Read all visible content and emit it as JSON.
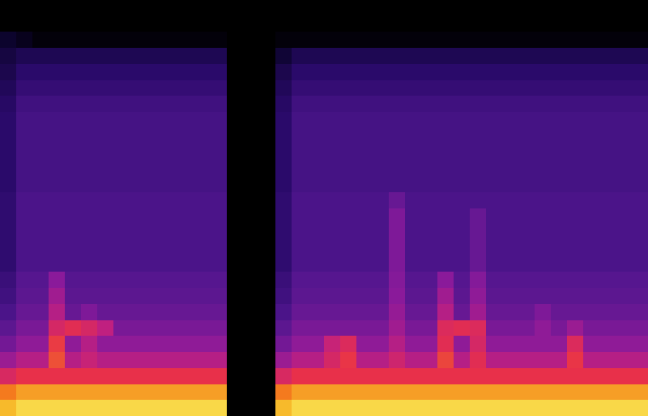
{
  "chart_data": {
    "type": "heatmap",
    "tick_labels": false,
    "xlim": [
      -0.5,
      39.5
    ],
    "ylim": [
      -0.5,
      25.5
    ],
    "zlim": [
      0,
      10
    ],
    "z": [
      [
        8.7,
        9.2,
        9.2,
        9.2,
        9.2,
        9.2,
        9.2,
        9.2,
        9.2,
        9.2,
        9.2,
        9.2,
        9.2,
        9.2,
        null,
        null,
        null,
        8.7,
        9.2,
        9.2,
        9.2,
        9.2,
        9.2,
        9.2,
        9.2,
        9.2,
        9.2,
        9.2,
        9.2,
        9.2,
        9.2,
        9.2,
        9.2,
        9.2,
        9.2,
        9.2,
        9.2,
        9.2,
        9.2,
        9.2
      ],
      [
        7.8,
        8.3,
        8.3,
        8.3,
        8.3,
        8.3,
        8.3,
        8.3,
        8.3,
        8.3,
        8.3,
        8.3,
        8.3,
        8.3,
        null,
        null,
        null,
        7.8,
        8.3,
        8.3,
        8.3,
        8.3,
        8.3,
        8.3,
        8.3,
        8.3,
        8.3,
        8.3,
        8.3,
        8.3,
        8.3,
        8.3,
        8.3,
        8.3,
        8.3,
        8.3,
        8.3,
        8.3,
        8.3,
        8.3
      ],
      [
        5.9,
        6.4,
        6.4,
        6.4,
        6.4,
        6.4,
        6.4,
        6.4,
        6.4,
        6.4,
        6.4,
        6.4,
        6.4,
        6.4,
        null,
        null,
        null,
        5.9,
        6.4,
        6.4,
        6.4,
        6.4,
        6.4,
        6.4,
        6.4,
        6.4,
        6.4,
        6.4,
        6.4,
        6.4,
        6.4,
        6.4,
        6.4,
        6.4,
        6.4,
        6.4,
        6.4,
        6.4,
        6.4,
        6.4
      ],
      [
        4.5,
        5,
        5,
        7,
        5,
        5.4,
        5,
        5,
        5,
        5,
        5,
        5,
        5,
        5,
        null,
        null,
        null,
        4.5,
        5,
        5,
        5.8,
        6.5,
        5,
        5,
        5.6,
        5,
        5,
        6.8,
        5,
        6.2,
        5,
        5,
        5,
        5,
        5,
        6.5,
        5,
        5,
        5,
        5
      ],
      [
        3.8,
        4.3,
        4.3,
        6.6,
        4.3,
        5,
        4.3,
        4.3,
        4.3,
        4.3,
        4.3,
        4.3,
        4.3,
        4.3,
        null,
        null,
        null,
        3.8,
        4.3,
        4.3,
        5.4,
        6,
        4.3,
        4.3,
        5,
        4.3,
        4.3,
        6.2,
        4.3,
        5.8,
        4.3,
        4.3,
        4.3,
        4.3,
        4.3,
        6,
        4.3,
        4.3,
        4.3,
        4.3
      ],
      [
        3.4,
        3.9,
        3.9,
        5.8,
        6.2,
        5.8,
        5.2,
        3.9,
        3.9,
        3.9,
        3.9,
        3.9,
        3.9,
        3.9,
        null,
        null,
        null,
        3.4,
        3.9,
        3.9,
        3.9,
        3.9,
        3.9,
        3.9,
        4.6,
        3.9,
        3.9,
        6,
        6.2,
        6,
        3.9,
        3.9,
        3.9,
        4.3,
        3.9,
        4.5,
        3.9,
        3.9,
        3.9,
        3.9
      ],
      [
        3.1,
        3.6,
        3.6,
        5,
        3.6,
        4,
        3.6,
        3.6,
        3.6,
        3.6,
        3.6,
        3.6,
        3.6,
        3.6,
        null,
        null,
        null,
        3.1,
        3.6,
        3.6,
        3.6,
        3.6,
        3.6,
        3.6,
        4.4,
        3.6,
        3.6,
        5,
        3.6,
        4.6,
        3.6,
        3.6,
        3.6,
        4,
        3.6,
        3.6,
        3.6,
        3.6,
        3.6,
        3.6
      ],
      [
        2.9,
        3.4,
        3.4,
        4.6,
        3.4,
        3.4,
        3.4,
        3.4,
        3.4,
        3.4,
        3.4,
        3.4,
        3.4,
        3.4,
        null,
        null,
        null,
        2.9,
        3.4,
        3.4,
        3.4,
        3.4,
        3.4,
        3.4,
        4.2,
        3.4,
        3.4,
        4.6,
        3.4,
        4.3,
        3.4,
        3.4,
        3.4,
        3.4,
        3.4,
        3.4,
        3.4,
        3.4,
        3.4,
        3.4
      ],
      [
        2.8,
        3.3,
        3.3,
        4.2,
        3.3,
        3.3,
        3.3,
        3.3,
        3.3,
        3.3,
        3.3,
        3.3,
        3.3,
        3.3,
        null,
        null,
        null,
        2.8,
        3.3,
        3.3,
        3.3,
        3.3,
        3.3,
        3.3,
        4.1,
        3.3,
        3.3,
        4.2,
        3.3,
        4.1,
        3.3,
        3.3,
        3.3,
        3.3,
        3.3,
        3.3,
        3.3,
        3.3,
        3.3,
        3.3
      ],
      [
        2.6,
        3.1,
        3.1,
        3.1,
        3.1,
        3.1,
        3.1,
        3.1,
        3.1,
        3.1,
        3.1,
        3.1,
        3.1,
        3.1,
        null,
        null,
        null,
        2.6,
        3.1,
        3.1,
        3.1,
        3.1,
        3.1,
        3.1,
        4,
        3.1,
        3.1,
        3.1,
        3.1,
        3.6,
        3.1,
        3.1,
        3.1,
        3.1,
        3.1,
        3.1,
        3.1,
        3.1,
        3.1,
        3.1
      ],
      [
        2.6,
        3.1,
        3.1,
        3.1,
        3.1,
        3.1,
        3.1,
        3.1,
        3.1,
        3.1,
        3.1,
        3.1,
        3.1,
        3.1,
        null,
        null,
        null,
        2.6,
        3.1,
        3.1,
        3.1,
        3.1,
        3.1,
        3.1,
        4,
        3.1,
        3.1,
        3.1,
        3.1,
        3.6,
        3.1,
        3.1,
        3.1,
        3.1,
        3.1,
        3.1,
        3.1,
        3.1,
        3.1,
        3.1
      ],
      [
        2.6,
        3.1,
        3.1,
        3.1,
        3.1,
        3.1,
        3.1,
        3.1,
        3.1,
        3.1,
        3.1,
        3.1,
        3.1,
        3.1,
        null,
        null,
        null,
        2.6,
        3.1,
        3.1,
        3.1,
        3.1,
        3.1,
        3.1,
        4,
        3.1,
        3.1,
        3.1,
        3.1,
        3.6,
        3.1,
        3.1,
        3.1,
        3.1,
        3.1,
        3.1,
        3.1,
        3.1,
        3.1,
        3.1
      ],
      [
        2.6,
        3.1,
        3.1,
        3.1,
        3.1,
        3.1,
        3.1,
        3.1,
        3.1,
        3.1,
        3.1,
        3.1,
        3.1,
        3.1,
        null,
        null,
        null,
        2.6,
        3.1,
        3.1,
        3.1,
        3.1,
        3.1,
        3.1,
        4,
        3.1,
        3.1,
        3.1,
        3.1,
        3.6,
        3.1,
        3.1,
        3.1,
        3.1,
        3.1,
        3.1,
        3.1,
        3.1,
        3.1,
        3.1
      ],
      [
        2.6,
        3.1,
        3.1,
        3.1,
        3.1,
        3.1,
        3.1,
        3.1,
        3.1,
        3.1,
        3.1,
        3.1,
        3.1,
        3.1,
        null,
        null,
        null,
        2.6,
        3.1,
        3.1,
        3.1,
        3.1,
        3.1,
        3.1,
        3.6,
        3.1,
        3.1,
        3.1,
        3.1,
        3.1,
        3.1,
        3.1,
        3.1,
        3.1,
        3.1,
        3.1,
        3.1,
        3.1,
        3.1,
        3.1
      ],
      [
        2.5,
        3,
        3,
        3,
        3,
        3,
        3,
        3,
        3,
        3,
        3,
        3,
        3,
        3,
        null,
        null,
        null,
        2.5,
        3,
        3,
        3,
        3,
        3,
        3,
        3,
        3,
        3,
        3,
        3,
        3,
        3,
        3,
        3,
        3,
        3,
        3,
        3,
        3,
        3,
        3
      ],
      [
        2.5,
        3,
        3,
        3,
        3,
        3,
        3,
        3,
        3,
        3,
        3,
        3,
        3,
        3,
        null,
        null,
        null,
        2.5,
        3,
        3,
        3,
        3,
        3,
        3,
        3,
        3,
        3,
        3,
        3,
        3,
        3,
        3,
        3,
        3,
        3,
        3,
        3,
        3,
        3,
        3
      ],
      [
        2.5,
        3,
        3,
        3,
        3,
        3,
        3,
        3,
        3,
        3,
        3,
        3,
        3,
        3,
        null,
        null,
        null,
        2.5,
        3,
        3,
        3,
        3,
        3,
        3,
        3,
        3,
        3,
        3,
        3,
        3,
        3,
        3,
        3,
        3,
        3,
        3,
        3,
        3,
        3,
        3
      ],
      [
        2.5,
        3,
        3,
        3,
        3,
        3,
        3,
        3,
        3,
        3,
        3,
        3,
        3,
        3,
        null,
        null,
        null,
        2.5,
        3,
        3,
        3,
        3,
        3,
        3,
        3,
        3,
        3,
        3,
        3,
        3,
        3,
        3,
        3,
        3,
        3,
        3,
        3,
        3,
        3,
        3
      ],
      [
        2.5,
        3,
        3,
        3,
        3,
        3,
        3,
        3,
        3,
        3,
        3,
        3,
        3,
        3,
        null,
        null,
        null,
        2.5,
        3,
        3,
        3,
        3,
        3,
        3,
        3,
        3,
        3,
        3,
        3,
        3,
        3,
        3,
        3,
        3,
        3,
        3,
        3,
        3,
        3,
        3
      ],
      [
        2.4,
        2.9,
        2.9,
        2.9,
        2.9,
        2.9,
        2.9,
        2.9,
        2.9,
        2.9,
        2.9,
        2.9,
        2.9,
        2.9,
        null,
        null,
        null,
        2.4,
        2.9,
        2.9,
        2.9,
        2.9,
        2.9,
        2.9,
        2.9,
        2.9,
        2.9,
        2.9,
        2.9,
        2.9,
        2.9,
        2.9,
        2.9,
        2.9,
        2.9,
        2.9,
        2.9,
        2.9,
        2.9,
        2.9
      ],
      [
        2.2,
        2.7,
        2.7,
        2.7,
        2.7,
        2.7,
        2.7,
        2.7,
        2.7,
        2.7,
        2.7,
        2.7,
        2.7,
        2.7,
        null,
        null,
        null,
        2.2,
        2.7,
        2.7,
        2.7,
        2.7,
        2.7,
        2.7,
        2.7,
        2.7,
        2.7,
        2.7,
        2.7,
        2.7,
        2.7,
        2.7,
        2.7,
        2.7,
        2.7,
        2.7,
        2.7,
        2.7,
        2.7,
        2.7
      ],
      [
        2,
        2.5,
        2.5,
        2.5,
        2.5,
        2.5,
        2.5,
        2.5,
        2.5,
        2.5,
        2.5,
        2.5,
        2.5,
        2.5,
        null,
        null,
        null,
        2,
        2.5,
        2.5,
        2.5,
        2.5,
        2.5,
        2.5,
        2.5,
        2.5,
        2.5,
        2.5,
        2.5,
        2.5,
        2.5,
        2.5,
        2.5,
        2.5,
        2.5,
        2.5,
        2.5,
        2.5,
        2.5,
        2.5
      ],
      [
        1.8,
        2.1,
        2.1,
        2.1,
        2.1,
        2.1,
        2.1,
        2.1,
        2.1,
        2.1,
        2.1,
        2.1,
        2.1,
        2.1,
        null,
        null,
        null,
        1.6,
        2.1,
        2.1,
        2.1,
        2.1,
        2.1,
        2.1,
        2.1,
        2.1,
        2.1,
        2.1,
        2.1,
        2.1,
        2.1,
        2.1,
        2.1,
        2.1,
        2.1,
        2.1,
        2.1,
        2.1,
        2.1,
        2.1
      ],
      [
        1.4,
        0.9,
        0.3,
        0.3,
        0.3,
        0.3,
        0.3,
        0.3,
        0.3,
        0.3,
        0.3,
        0.3,
        0.3,
        0.3,
        null,
        null,
        null,
        0.3,
        0.3,
        0.3,
        0.3,
        0.3,
        0.3,
        0.3,
        0.3,
        0.3,
        0.3,
        0.3,
        0.3,
        0.3,
        0.3,
        0.3,
        0.3,
        0.3,
        0.3,
        0.3,
        0.3,
        0.3,
        0.3,
        0.3
      ],
      [
        null,
        null,
        null,
        null,
        null,
        null,
        null,
        null,
        null,
        null,
        null,
        null,
        null,
        null,
        null,
        null,
        null,
        null,
        null,
        null,
        null,
        null,
        null,
        null,
        null,
        null,
        null,
        null,
        null,
        null,
        null,
        null,
        null,
        null,
        null,
        null,
        null,
        null,
        null,
        null
      ],
      [
        null,
        null,
        null,
        null,
        null,
        null,
        null,
        null,
        null,
        null,
        null,
        null,
        null,
        null,
        null,
        null,
        null,
        null,
        null,
        null,
        null,
        null,
        null,
        null,
        null,
        null,
        null,
        null,
        null,
        null,
        null,
        null,
        null,
        null,
        null,
        null,
        null,
        null,
        null,
        null
      ]
    ]
  }
}
